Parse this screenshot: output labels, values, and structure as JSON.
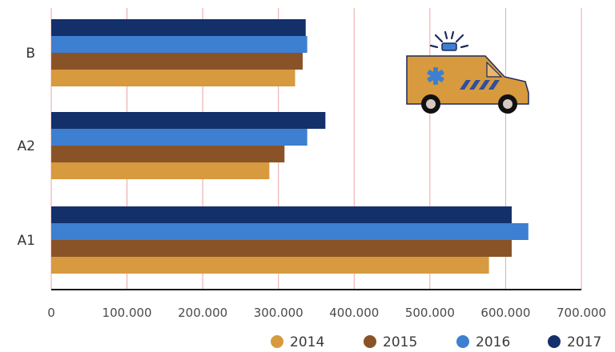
{
  "chart_data": {
    "type": "bar",
    "orientation": "horizontal",
    "title": "",
    "xlabel": "",
    "ylabel": "",
    "categories": [
      "B",
      "A2",
      "A1"
    ],
    "series": [
      {
        "name": "2014",
        "color": "#d79a3e",
        "values": [
          322000,
          288000,
          578000
        ]
      },
      {
        "name": "2015",
        "color": "#8a5327",
        "values": [
          332000,
          308000,
          608000
        ]
      },
      {
        "name": "2016",
        "color": "#3d7fd0",
        "values": [
          338000,
          338000,
          630000
        ]
      },
      {
        "name": "2017",
        "color": "#14306b",
        "values": [
          336000,
          362000,
          608000
        ]
      }
    ],
    "xlim": [
      0,
      700000
    ],
    "xticks": [
      0,
      100000,
      200000,
      300000,
      400000,
      500000,
      600000,
      700000
    ],
    "xtick_labels": [
      "0",
      "100.000",
      "200.000",
      "300.000",
      "400.000",
      "500.000",
      "600.000",
      "700.000"
    ],
    "grid": true,
    "grid_color": "#e8a5a5",
    "legend_position": "bottom-right",
    "illustration": "ambulance-icon"
  }
}
